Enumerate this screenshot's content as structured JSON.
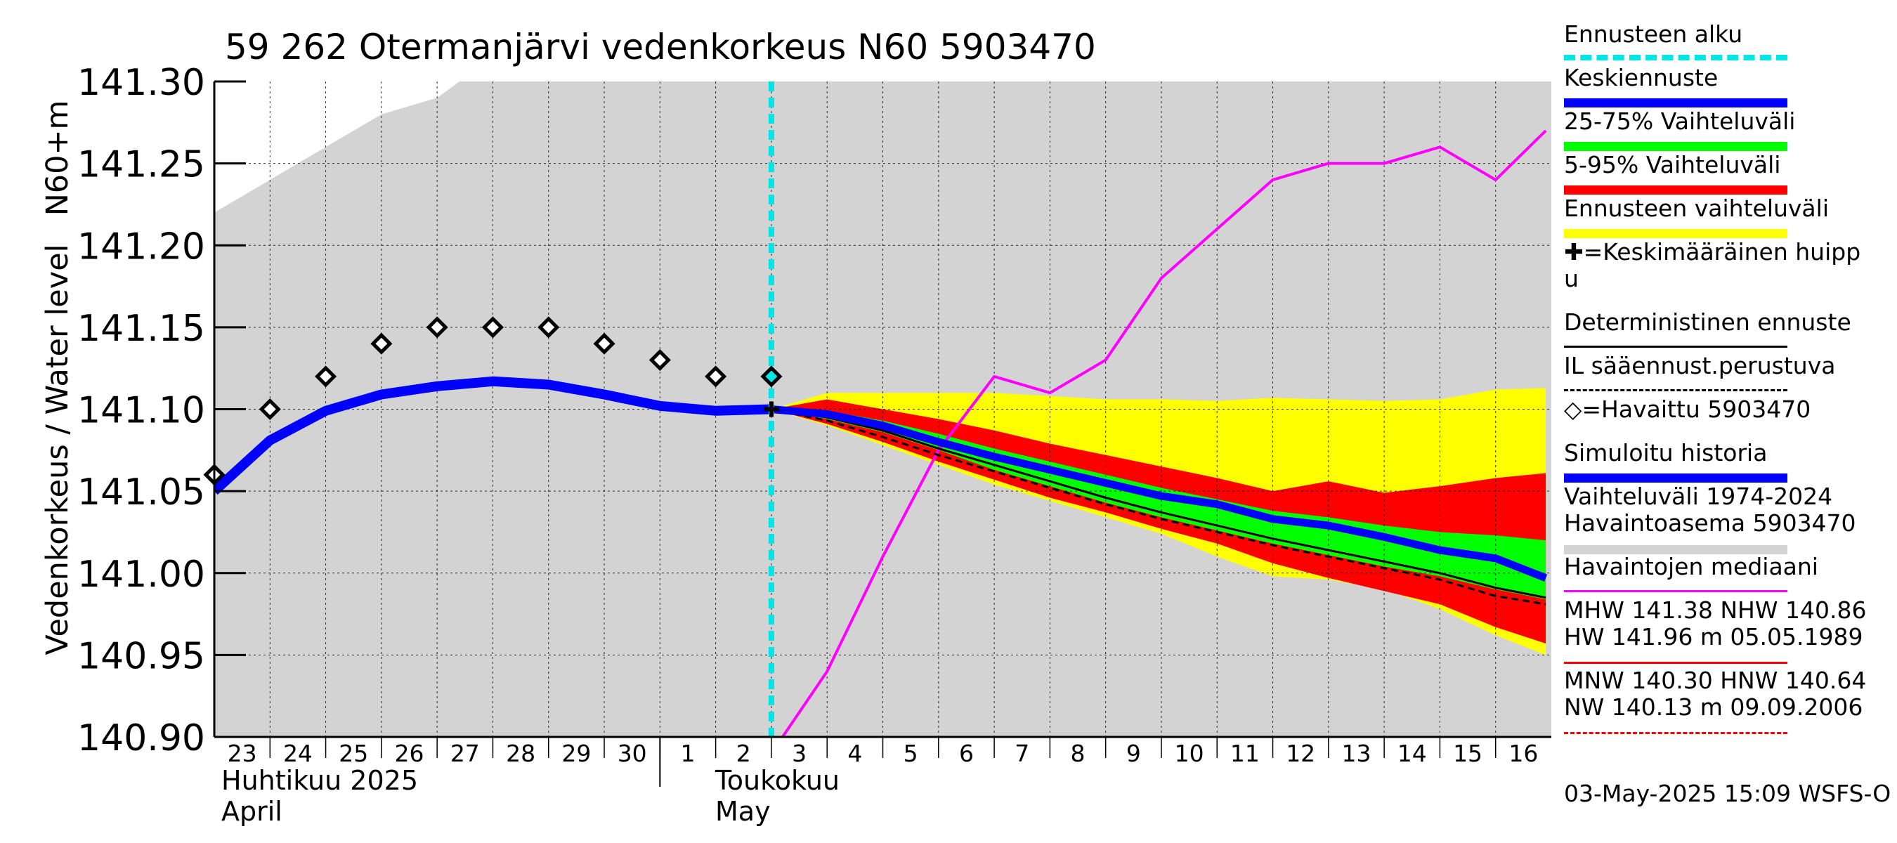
{
  "chart_data": {
    "type": "line",
    "title": "59 262 Otermanjärvi vedenkorkeus N60 5903470",
    "ylabel_main": "Vedenkorkeus / Water level",
    "ylabel_unit": "N60+m",
    "ylim": [
      140.9,
      141.3
    ],
    "y_ticks": [
      "140.90",
      "140.95",
      "141.00",
      "141.05",
      "141.10",
      "141.15",
      "141.20",
      "141.25",
      "141.30"
    ],
    "x_day_labels": [
      "23",
      "24",
      "25",
      "26",
      "27",
      "28",
      "29",
      "30",
      "1",
      "2",
      "3",
      "4",
      "5",
      "6",
      "7",
      "8",
      "9",
      "10",
      "11",
      "12",
      "13",
      "14",
      "15",
      "16"
    ],
    "month_labels": [
      {
        "fi": "Huhtikuu  2025",
        "en": "April"
      },
      {
        "fi": "Toukokuu",
        "en": "May"
      }
    ],
    "forecast_start_day": 10,
    "series": [
      {
        "name": "Vaihteluväli 1974-2024 (upper)",
        "x": [
          0,
          1,
          2,
          3,
          4,
          4.4,
          23.9
        ],
        "values": [
          141.22,
          141.24,
          141.26,
          141.28,
          141.29,
          141.3,
          141.3
        ]
      },
      {
        "name": "Ennusteen vaihteluväli upper",
        "x": [
          10,
          11,
          12,
          13,
          14,
          15,
          16,
          17,
          18,
          19,
          20,
          21,
          22,
          23,
          23.9
        ],
        "values": [
          141.1,
          141.11,
          141.11,
          141.11,
          141.11,
          141.108,
          141.106,
          141.106,
          141.105,
          141.107,
          141.106,
          141.105,
          141.106,
          141.112,
          141.113
        ]
      },
      {
        "name": "Ennusteen vaihteluväli lower",
        "x": [
          10,
          11,
          12,
          13,
          14,
          15,
          16,
          17,
          18,
          19,
          20,
          21,
          22,
          23,
          23.9
        ],
        "values": [
          141.1,
          141.09,
          141.078,
          141.066,
          141.054,
          141.044,
          141.034,
          141.024,
          141.01,
          140.998,
          140.996,
          140.99,
          140.978,
          140.962,
          140.95
        ]
      },
      {
        "name": "5-95% upper",
        "x": [
          10,
          11,
          12,
          13,
          14,
          15,
          16,
          17,
          18,
          19,
          20,
          21,
          22,
          23,
          23.9
        ],
        "values": [
          141.1,
          141.106,
          141.1,
          141.094,
          141.087,
          141.079,
          141.072,
          141.065,
          141.058,
          141.05,
          141.056,
          141.049,
          141.053,
          141.058,
          141.061
        ]
      },
      {
        "name": "5-95% lower",
        "x": [
          10,
          11,
          12,
          13,
          14,
          15,
          16,
          17,
          18,
          19,
          20,
          21,
          22,
          23,
          23.9
        ],
        "values": [
          141.1,
          141.091,
          141.08,
          141.068,
          141.057,
          141.046,
          141.037,
          141.027,
          141.018,
          141.006,
          140.997,
          140.989,
          140.981,
          140.967,
          140.957
        ]
      },
      {
        "name": "25-75% upper",
        "x": [
          10,
          11,
          12,
          13,
          14,
          15,
          16,
          17,
          18,
          19,
          20,
          21,
          22,
          23,
          23.9
        ],
        "values": [
          141.1,
          141.099,
          141.093,
          141.085,
          141.076,
          141.068,
          141.06,
          141.052,
          141.045,
          141.038,
          141.034,
          141.029,
          141.025,
          141.023,
          141.02
        ]
      },
      {
        "name": "25-75% lower",
        "x": [
          10,
          11,
          12,
          13,
          14,
          15,
          16,
          17,
          18,
          19,
          20,
          21,
          22,
          23,
          23.9
        ],
        "values": [
          141.1,
          141.094,
          141.086,
          141.075,
          141.063,
          141.053,
          141.043,
          141.034,
          141.026,
          141.018,
          141.011,
          141.004,
          140.998,
          140.99,
          140.984
        ]
      },
      {
        "name": "Keskiennuste",
        "x": [
          10,
          11,
          12,
          13,
          14,
          15,
          16,
          17,
          18,
          19,
          20,
          21,
          22,
          23,
          23.9
        ],
        "values": [
          141.1,
          141.097,
          141.09,
          141.08,
          141.071,
          141.063,
          141.055,
          141.047,
          141.042,
          141.033,
          141.029,
          141.022,
          141.014,
          141.009,
          140.997
        ]
      },
      {
        "name": "Deterministinen ennuste",
        "x": [
          10,
          11,
          12,
          13,
          14,
          15,
          16,
          17,
          18,
          19,
          20,
          21,
          22,
          23,
          23.9
        ],
        "values": [
          141.1,
          141.095,
          141.087,
          141.076,
          141.066,
          141.056,
          141.046,
          141.037,
          141.029,
          141.021,
          141.014,
          141.007,
          141.0,
          140.991,
          140.985
        ]
      },
      {
        "name": "IL sääennust.perustuva",
        "x": [
          10,
          11,
          12,
          13,
          14,
          15,
          16,
          17,
          18,
          19,
          20,
          21,
          22,
          23,
          23.9
        ],
        "values": [
          141.1,
          141.093,
          141.083,
          141.072,
          141.062,
          141.052,
          141.042,
          141.033,
          141.025,
          141.017,
          141.01,
          141.003,
          140.996,
          140.986,
          140.981
        ]
      },
      {
        "name": "Simuloitu historia",
        "x": [
          0,
          1,
          2,
          3,
          4,
          5,
          6,
          7,
          8,
          9,
          10
        ],
        "values": [
          141.05,
          141.081,
          141.099,
          141.109,
          141.114,
          141.117,
          141.115,
          141.109,
          141.102,
          141.099,
          141.1
        ]
      },
      {
        "name": "Havaintojen mediaani",
        "x": [
          10.2,
          11,
          12,
          13,
          14,
          15,
          16,
          17,
          18,
          19,
          20,
          21,
          22,
          23,
          23.9
        ],
        "values": [
          140.9,
          140.94,
          141.01,
          141.075,
          141.12,
          141.11,
          141.13,
          141.18,
          141.21,
          141.24,
          141.25,
          141.25,
          141.26,
          141.24,
          141.27
        ]
      },
      {
        "name": "Havaittu 5903470",
        "x": [
          0,
          1,
          2,
          3,
          4,
          5,
          6,
          7,
          8,
          9,
          10
        ],
        "values": [
          141.06,
          141.1,
          141.12,
          141.14,
          141.15,
          141.15,
          141.15,
          141.14,
          141.13,
          141.12,
          141.12
        ]
      }
    ],
    "mean_peak": {
      "x": 10,
      "value": 141.1
    }
  },
  "legend": {
    "items": [
      {
        "label": "Ennusteen alku",
        "color": "#00e5e5",
        "kind": "dashed"
      },
      {
        "label": "Keskiennuste",
        "color": "#0000ff",
        "kind": "thick"
      },
      {
        "label": "25-75% Vaihteluväli",
        "color": "#00ff00",
        "kind": "thick"
      },
      {
        "label": "5-95% Vaihteluväli",
        "color": "#ff0000",
        "kind": "thick"
      },
      {
        "label": "Ennusteen vaihteluväli",
        "color": "#ffff00",
        "kind": "thick"
      },
      {
        "label": "✚=Keskimääräinen huipp",
        "label2": "u",
        "color": "#000000",
        "kind": "none"
      },
      {
        "label": "Deterministinen ennuste",
        "color": "#000000",
        "kind": "thin"
      },
      {
        "label": "IL sääennust.perustuva",
        "color": "#000000",
        "kind": "dotted"
      },
      {
        "label": "◇=Havaittu 5903470",
        "color": "#000000",
        "kind": "none"
      },
      {
        "label": "Simuloitu historia",
        "color": "#0000ff",
        "kind": "thick"
      },
      {
        "label": "Vaihteluväli 1974-2024",
        "label2": " Havaintoasema 5903470",
        "color": "#d3d3d3",
        "kind": "thick"
      },
      {
        "label": "Havaintojen mediaani",
        "color": "#ff00ff",
        "kind": "thin"
      },
      {
        "label": "MHW 141.38 NHW 140.86",
        "label2": "HW 141.96 m 05.05.1989",
        "color": "#ff0000",
        "kind": "thin"
      },
      {
        "label": "MNW 140.30 HNW 140.64",
        "label2": "NW 140.13 m 09.09.2006",
        "color": "#ff0000",
        "kind": "dotted"
      }
    ]
  },
  "footer": {
    "timestamp": "03-May-2025 15:09 WSFS-O"
  },
  "colors": {
    "history_band": "#d3d3d3",
    "forecast_band": "#ffff00",
    "band_5_95": "#ff0000",
    "band_25_75": "#00ff00",
    "mean": "#0000ff",
    "median": "#ff00ff",
    "forecast_start": "#00e5e5"
  }
}
